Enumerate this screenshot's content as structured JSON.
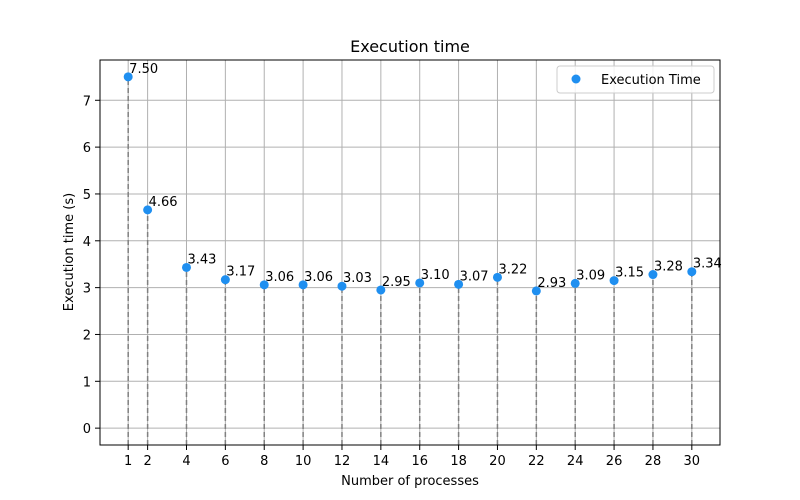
{
  "chart_data": {
    "type": "scatter",
    "title": "Execution time",
    "xlabel": "Number of processes",
    "ylabel": "Execution time (s)",
    "x_ticks": [
      1,
      2,
      4,
      6,
      8,
      10,
      12,
      14,
      16,
      18,
      20,
      22,
      24,
      26,
      28,
      30
    ],
    "y_ticks": [
      0,
      1,
      2,
      3,
      4,
      5,
      6,
      7
    ],
    "xlim": [
      -0.45,
      31.45
    ],
    "ylim": [
      -0.36,
      7.86
    ],
    "grid": true,
    "legend_position": "top-right",
    "series": [
      {
        "name": "Execution Time",
        "color": "#1f8ff0",
        "points": [
          {
            "x": 1,
            "y": 7.5,
            "label": "7.50"
          },
          {
            "x": 2,
            "y": 4.66,
            "label": "4.66"
          },
          {
            "x": 4,
            "y": 3.43,
            "label": "3.43"
          },
          {
            "x": 6,
            "y": 3.17,
            "label": "3.17"
          },
          {
            "x": 8,
            "y": 3.06,
            "label": "3.06"
          },
          {
            "x": 10,
            "y": 3.06,
            "label": "3.06"
          },
          {
            "x": 12,
            "y": 3.03,
            "label": "3.03"
          },
          {
            "x": 14,
            "y": 2.95,
            "label": "2.95"
          },
          {
            "x": 16,
            "y": 3.1,
            "label": "3.10"
          },
          {
            "x": 18,
            "y": 3.07,
            "label": "3.07"
          },
          {
            "x": 20,
            "y": 3.22,
            "label": "3.22"
          },
          {
            "x": 22,
            "y": 2.93,
            "label": "2.93"
          },
          {
            "x": 24,
            "y": 3.09,
            "label": "3.09"
          },
          {
            "x": 26,
            "y": 3.15,
            "label": "3.15"
          },
          {
            "x": 28,
            "y": 3.28,
            "label": "3.28"
          },
          {
            "x": 30,
            "y": 3.34,
            "label": "3.34"
          }
        ]
      }
    ],
    "stem_color": "#808080",
    "grid_color": "#b0b0b0"
  }
}
